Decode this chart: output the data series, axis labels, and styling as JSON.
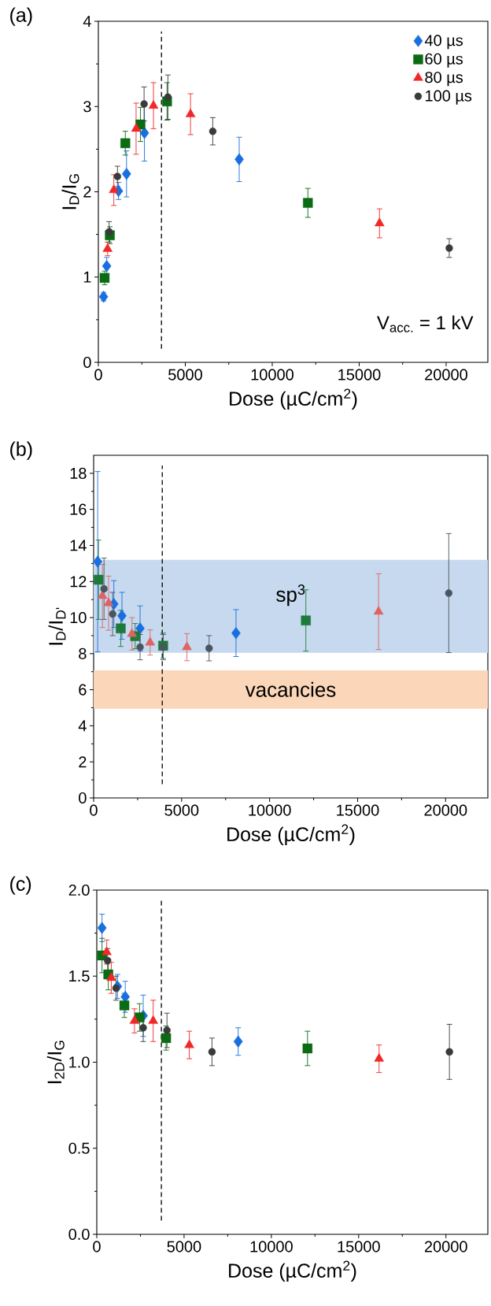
{
  "chart_data": [
    {
      "type": "scatter",
      "title": "(a)",
      "xlabel": "Dose (µC/cm$^{2}$)",
      "ylabel": "I$_{D}$/I$_{G}$",
      "xlim": [
        0,
        22400
      ],
      "ylim": [
        0,
        4
      ],
      "xticks": [
        0,
        5000,
        10000,
        15000,
        20000
      ],
      "yticks": [
        0,
        1,
        2,
        3,
        4
      ],
      "legend": "top right",
      "annotations": [
        "V$_{acc.}$ = 1 kV"
      ],
      "ref_lines": [
        {
          "axis": "x",
          "value": 3630,
          "line_style": "dashed",
          "color": "#000000"
        }
      ],
      "series": [
        {
          "name": "40 µs",
          "color": "#1a6fe0",
          "marker": "diamond",
          "x": [
            300,
            480,
            1160,
            1620,
            2650,
            8100
          ],
          "values": [
            0.77,
            1.13,
            2.01,
            2.21,
            2.69,
            2.38
          ],
          "errors": [
            0.05,
            0.1,
            0.1,
            0.27,
            0.33,
            0.26
          ]
        },
        {
          "name": "60 µs",
          "color": "#0b6b12",
          "marker": "square",
          "x": [
            360,
            660,
            1550,
            2420,
            3950,
            12050
          ],
          "values": [
            0.99,
            1.49,
            2.57,
            2.79,
            3.06,
            1.87
          ],
          "errors": [
            0.08,
            0.1,
            0.14,
            0.2,
            0.22,
            0.17
          ]
        },
        {
          "name": "80 µs",
          "color": "#f02828",
          "marker": "triangle",
          "x": [
            530,
            890,
            2170,
            3170,
            5300,
            16170
          ],
          "values": [
            1.33,
            2.02,
            2.74,
            3.01,
            2.91,
            1.63
          ],
          "errors": [
            0.08,
            0.18,
            0.3,
            0.27,
            0.24,
            0.17
          ]
        },
        {
          "name": "100 µs",
          "color": "#3a3a3a",
          "marker": "circle",
          "x": [
            620,
            1100,
            2630,
            4000,
            6580,
            20180
          ],
          "values": [
            1.53,
            2.18,
            3.03,
            3.11,
            2.71,
            1.34
          ],
          "errors": [
            0.12,
            0.12,
            0.2,
            0.26,
            0.16,
            0.11
          ]
        }
      ]
    },
    {
      "type": "scatter",
      "title": "(b)",
      "xlabel": "Dose (µC/cm$^{2}$)",
      "ylabel": "I$_{D}$/I$_{D'}$",
      "xlim": [
        0,
        22400
      ],
      "ylim": [
        0,
        19
      ],
      "xticks": [
        0,
        5000,
        10000,
        15000,
        20000
      ],
      "yticks": [
        0,
        2,
        4,
        6,
        8,
        10,
        12,
        14,
        16,
        18
      ],
      "ref_lines": [
        {
          "axis": "x",
          "value": 3900,
          "line_style": "dashed",
          "color": "#000000"
        }
      ],
      "bands": [
        {
          "axis": "y",
          "from": 8.05,
          "to": 13.2,
          "label": "sp$^{3}$",
          "color": "#c6d9ee"
        },
        {
          "axis": "y",
          "from": 4.95,
          "to": 7.08,
          "label": "vacancies",
          "color": "#fbd6b8"
        }
      ],
      "series": [
        {
          "color": "#1a6fe0",
          "marker": "diamond",
          "x": [
            230,
            1150,
            1610,
            2640,
            8090
          ],
          "values": [
            13.1,
            10.75,
            10.1,
            9.4,
            9.14
          ],
          "errors": [
            5.0,
            1.3,
            1.3,
            1.25,
            1.3
          ]
        },
        {
          "color": "#1d7a3a",
          "marker": "square",
          "x": [
            280,
            1540,
            2360,
            3950,
            12060
          ],
          "values": [
            12.1,
            9.4,
            8.97,
            8.44,
            9.84
          ],
          "errors": [
            2.2,
            1.0,
            0.7,
            0.7,
            1.7
          ]
        },
        {
          "color": "#e06262",
          "marker": "triangle",
          "x": [
            500,
            850,
            2180,
            3210,
            5300,
            16190
          ],
          "values": [
            11.2,
            10.8,
            9.1,
            8.62,
            8.36,
            10.33
          ],
          "errors": [
            1.75,
            1.5,
            0.9,
            0.7,
            0.75,
            2.1
          ]
        },
        {
          "color": "#4a5560",
          "marker": "circle",
          "x": [
            590,
            1080,
            2640,
            3950,
            6560,
            20180
          ],
          "values": [
            11.6,
            10.2,
            8.36,
            8.36,
            8.3,
            11.36
          ],
          "errors": [
            1.7,
            1.2,
            0.7,
            0.7,
            0.7,
            3.3
          ]
        }
      ]
    },
    {
      "type": "scatter",
      "title": "(c)",
      "xlabel": "Dose (µC/cm$^{2}$)",
      "ylabel": "I$_{2D}$/I$_{G}$",
      "xlim": [
        0,
        22400
      ],
      "ylim": [
        0,
        2
      ],
      "xticks": [
        0,
        5000,
        10000,
        15000,
        20000
      ],
      "yticks": [
        {
          "value": 0,
          "label": "0.0"
        },
        {
          "value": 0.5,
          "label": "0.5"
        },
        {
          "value": 1,
          "label": "1.0"
        },
        {
          "value": 1.5,
          "label": "1.5"
        },
        {
          "value": 2,
          "label": "2.0"
        }
      ],
      "ref_lines": [
        {
          "axis": "x",
          "value": 3700,
          "line_style": "dashed",
          "color": "#000000"
        }
      ],
      "series": [
        {
          "color": "#1a6fe0",
          "marker": "diamond",
          "x": [
            300,
            1190,
            1630,
            2660,
            8100
          ],
          "values": [
            1.78,
            1.44,
            1.38,
            1.27,
            1.12
          ],
          "errors": [
            0.08,
            0.07,
            0.09,
            0.12,
            0.08
          ]
        },
        {
          "color": "#0b6b12",
          "marker": "square",
          "x": [
            300,
            660,
            1580,
            2450,
            3970,
            12070
          ],
          "values": [
            1.62,
            1.51,
            1.33,
            1.26,
            1.14,
            1.08
          ],
          "errors": [
            0.1,
            0.09,
            0.07,
            0.08,
            0.07,
            0.1
          ]
        },
        {
          "color": "#f02828",
          "marker": "triangle",
          "x": [
            570,
            830,
            2160,
            3230,
            5300,
            16170
          ],
          "values": [
            1.64,
            1.49,
            1.24,
            1.24,
            1.1,
            1.02
          ],
          "errors": [
            0.07,
            0.09,
            0.07,
            0.12,
            0.08,
            0.08
          ]
        },
        {
          "color": "#3a3a3a",
          "marker": "circle",
          "x": [
            620,
            1100,
            2660,
            4020,
            6600,
            20200
          ],
          "values": [
            1.59,
            1.43,
            1.2,
            1.185,
            1.06,
            1.06
          ],
          "errors": [
            0.07,
            0.07,
            0.08,
            0.1,
            0.08,
            0.16
          ]
        }
      ]
    }
  ]
}
